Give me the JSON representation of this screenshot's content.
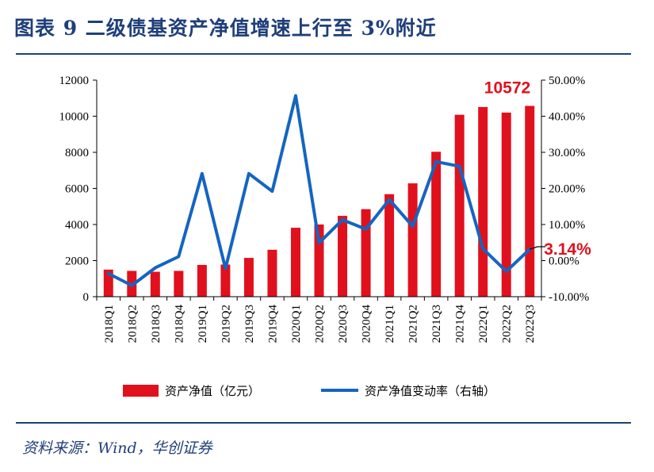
{
  "header": {
    "title": "图表 9  二级债基资产净值增速上行至 3%附近"
  },
  "footer": {
    "source": "资料来源：Wind，华创证券"
  },
  "colors": {
    "bar": "#e0111d",
    "line": "#1565c0",
    "rule": "#1f3f7a",
    "highlight": "#e0111d"
  },
  "chart_data": {
    "type": "bar+line",
    "categories": [
      "2018Q1",
      "2018Q2",
      "2018Q3",
      "2018Q4",
      "2019Q1",
      "2019Q2",
      "2019Q3",
      "2019Q4",
      "2020Q1",
      "2020Q2",
      "2020Q3",
      "2020Q4",
      "2021Q1",
      "2021Q2",
      "2021Q3",
      "2021Q4",
      "2022Q1",
      "2022Q2",
      "2022Q3"
    ],
    "series": [
      {
        "name": "资产净值（亿元）",
        "axis": "left",
        "kind": "bar",
        "values": [
          1500,
          1430,
          1380,
          1430,
          1760,
          1780,
          2150,
          2600,
          3820,
          4000,
          4480,
          4850,
          5680,
          6280,
          8030,
          10080,
          10510,
          10200,
          10572
        ]
      },
      {
        "name": "资产净值变动率（右轴）",
        "axis": "right",
        "kind": "line",
        "values": [
          -3.6,
          -6.9,
          -2.0,
          1.1,
          24.1,
          -2.2,
          24.1,
          19.2,
          45.7,
          4.9,
          11.3,
          8.7,
          16.9,
          9.5,
          27.4,
          26.1,
          3.3,
          -3.0,
          3.14
        ]
      }
    ],
    "left_axis": {
      "min": 0,
      "max": 12000,
      "ticks": [
        "0",
        "2000",
        "4000",
        "6000",
        "8000",
        "10000",
        "12000"
      ]
    },
    "right_axis": {
      "min": -10,
      "max": 50,
      "ticks": [
        "-10.00%",
        "0.00%",
        "10.00%",
        "20.00%",
        "30.00%",
        "40.00%",
        "50.00%"
      ]
    },
    "annotations": {
      "bar_last_label": "10572",
      "line_last_label": "3.14%"
    },
    "legend": {
      "position": "bottom",
      "items": [
        "资产净值（亿元）",
        "资产净值变动率（右轴）"
      ]
    }
  }
}
